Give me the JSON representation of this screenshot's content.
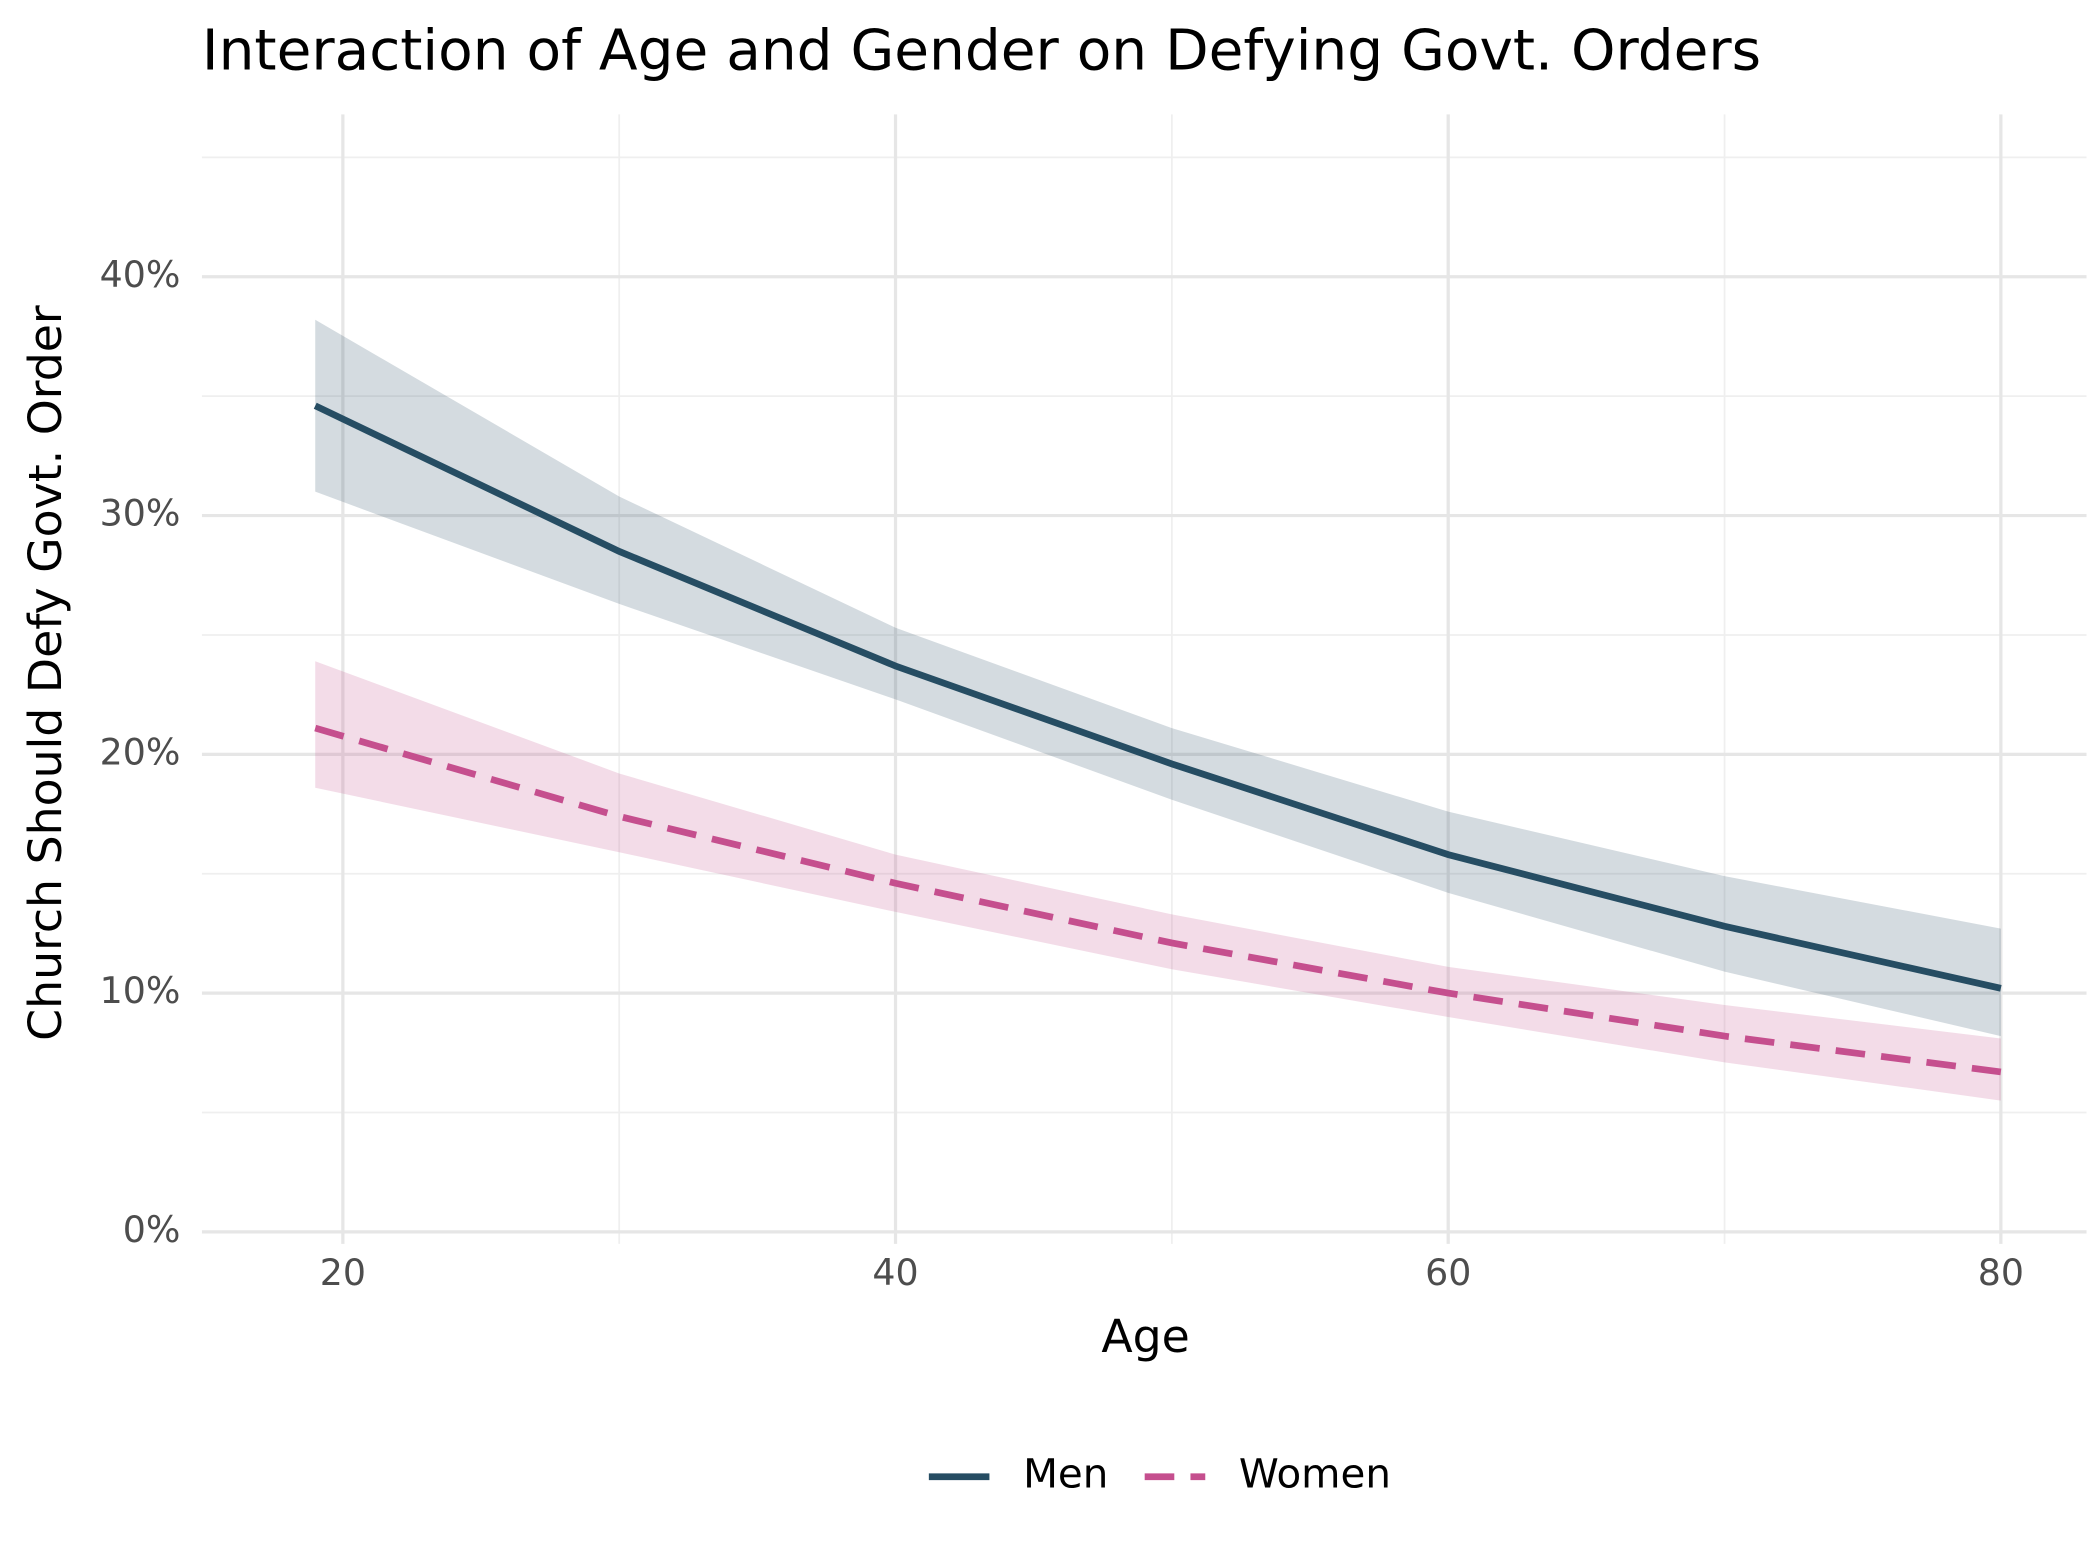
{
  "chart_data": {
    "type": "line",
    "title": "Interaction of Age and Gender on Defying Govt. Orders",
    "x_label": "Age",
    "y_label": "Church Should Defy Govt. Order",
    "x": [
      19,
      30,
      40,
      50,
      60,
      70,
      80
    ],
    "series": [
      {
        "name": "Men",
        "color": "#264d63",
        "dash": "solid",
        "values": [
          34.6,
          28.5,
          23.7,
          19.6,
          15.8,
          12.8,
          10.2
        ],
        "lower": [
          31.0,
          26.3,
          22.3,
          18.1,
          14.2,
          10.9,
          8.2
        ],
        "upper": [
          38.2,
          30.8,
          25.3,
          21.1,
          17.6,
          14.9,
          12.7
        ]
      },
      {
        "name": "Women",
        "color": "#c54f8e",
        "dash": "dashed",
        "values": [
          21.1,
          17.4,
          14.6,
          12.1,
          10.0,
          8.2,
          6.7
        ],
        "lower": [
          18.6,
          15.9,
          13.4,
          11.0,
          9.0,
          7.1,
          5.5
        ],
        "upper": [
          23.9,
          19.2,
          15.8,
          13.3,
          11.1,
          9.5,
          8.1
        ]
      }
    ],
    "xlim": [
      14.9,
      83.1
    ],
    "ylim": [
      -0.5,
      46.8
    ],
    "xticks": [
      20,
      40,
      60,
      80
    ],
    "xminor": [
      30,
      50,
      70
    ],
    "yticks": [
      {
        "value": 0,
        "label": "0%"
      },
      {
        "value": 10,
        "label": "10%"
      },
      {
        "value": 20,
        "label": "20%"
      },
      {
        "value": 30,
        "label": "30%"
      },
      {
        "value": 40,
        "label": "40%"
      }
    ],
    "yminor": [
      5,
      15,
      25,
      35,
      45
    ],
    "grid": true,
    "legend": "bottom"
  }
}
